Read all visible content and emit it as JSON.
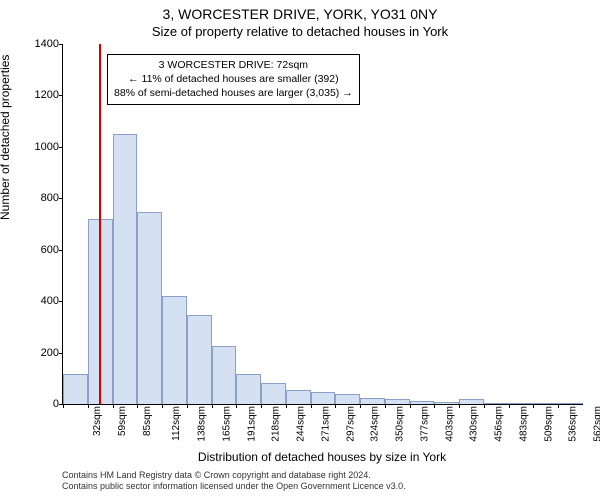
{
  "titles": {
    "main": "3, WORCESTER DRIVE, YORK, YO31 0NY",
    "sub": "Size of property relative to detached houses in York"
  },
  "axes": {
    "ylabel": "Number of detached properties",
    "xlabel": "Distribution of detached houses by size in York",
    "ylim": [
      0,
      1400
    ],
    "ytick_step": 200,
    "yticks": [
      0,
      200,
      400,
      600,
      800,
      1000,
      1200,
      1400
    ],
    "xticks": [
      "32sqm",
      "59sqm",
      "85sqm",
      "112sqm",
      "138sqm",
      "165sqm",
      "191sqm",
      "218sqm",
      "244sqm",
      "271sqm",
      "297sqm",
      "324sqm",
      "350sqm",
      "377sqm",
      "403sqm",
      "430sqm",
      "456sqm",
      "483sqm",
      "509sqm",
      "536sqm",
      "562sqm"
    ],
    "tick_fontsize": 11
  },
  "chart": {
    "type": "histogram",
    "bin_start": 32,
    "bin_width": 26.5,
    "values": [
      115,
      720,
      1052,
      745,
      420,
      345,
      225,
      115,
      80,
      55,
      45,
      38,
      25,
      18,
      12,
      8,
      18,
      5,
      5,
      4,
      3
    ],
    "bar_fill": "#d5e0f2",
    "bar_stroke": "#8aa0c8",
    "background_color": "#ffffff",
    "marker": {
      "sqm": 72,
      "color": "#d60000"
    }
  },
  "legend": {
    "line1": "3 WORCESTER DRIVE: 72sqm",
    "line2": "← 11% of detached houses are smaller (392)",
    "line3": "88% of semi-detached houses are larger (3,035) →",
    "border_color": "#000000",
    "bg_color": "#ffffff",
    "fontsize": 10.5
  },
  "footer": {
    "line1": "Contains HM Land Registry data © Crown copyright and database right 2024.",
    "line2": "Contains public sector information licensed under the Open Government Licence v3.0."
  }
}
